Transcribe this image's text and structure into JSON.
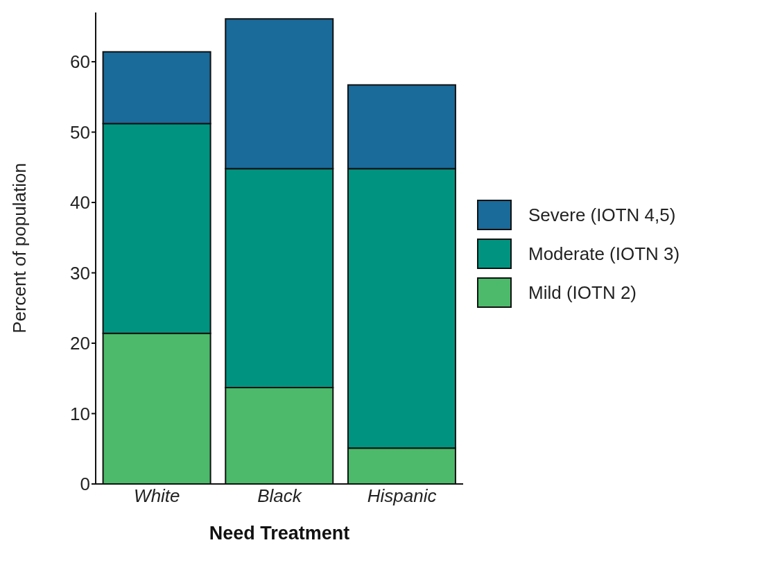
{
  "chart_data": {
    "type": "bar",
    "stacked": true,
    "xlabel": "Need Treatment",
    "ylabel": "Percent of population",
    "categories": [
      "White",
      "Black",
      "Hispanic"
    ],
    "series": [
      {
        "name": "Mild (IOTN 2)",
        "color": "#4cba6a",
        "values": [
          21.4,
          13.7,
          5.1
        ]
      },
      {
        "name": "Moderate (IOTN 3)",
        "color": "#009480",
        "values": [
          29.8,
          31.1,
          39.7
        ]
      },
      {
        "name": "Severe (IOTN 4,5)",
        "color": "#1a6a9a",
        "values": [
          10.2,
          21.3,
          11.9
        ]
      }
    ],
    "ylim": [
      0,
      67
    ],
    "yticks": [
      0,
      10,
      20,
      30,
      40,
      50,
      60
    ],
    "grid": false,
    "legend": "right"
  }
}
